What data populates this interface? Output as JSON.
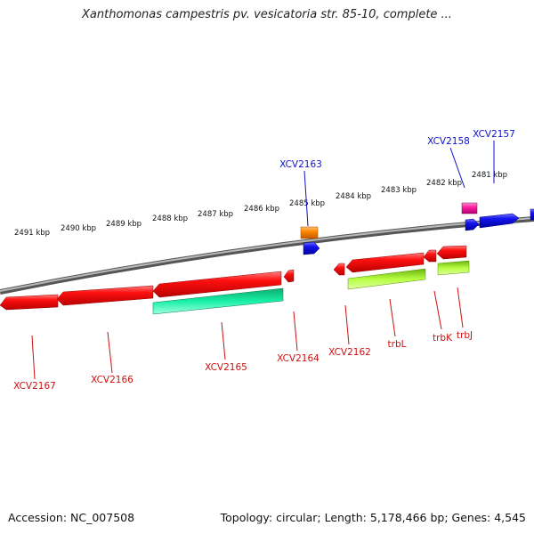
{
  "title": "Xanthomonas campestris pv. vesicatoria str. 85-10, complete ...",
  "footer": {
    "accession": "Accession: NC_007508",
    "summary": "Topology: circular; Length: 5,178,466 bp; Genes: 4,545"
  },
  "colors": {
    "backbone": "#8a8a8a",
    "tick": "#1e8a1e",
    "label_top": "#1010cc",
    "label_bottom": "#cc1010"
  },
  "kbp_labels": [
    "2491 kbp",
    "2490 kbp",
    "2489 kbp",
    "2488 kbp",
    "2487 kbp",
    "2486 kbp",
    "2485 kbp",
    "2484 kbp",
    "2483 kbp",
    "2482 kbp",
    "2481 kbp"
  ],
  "genes_forward": [
    {
      "id": "XCV2163",
      "label": "XCV2163",
      "color": "#2020e0"
    },
    {
      "id": "XCV2158",
      "label": "XCV2158",
      "color": "#2020e0"
    },
    {
      "id": "XCV2157",
      "label": "XCV2157",
      "color": "#2020e0"
    }
  ],
  "genes_reverse": [
    {
      "id": "XCV2167",
      "label": "XCV2167",
      "color": "#ee1010"
    },
    {
      "id": "XCV2166",
      "label": "XCV2166",
      "color": "#ee1010"
    },
    {
      "id": "XCV2165",
      "label": "XCV2165",
      "color": "#ee1010"
    },
    {
      "id": "XCV2164",
      "label": "XCV2164",
      "color": "#ee1010"
    },
    {
      "id": "XCV2162",
      "label": "XCV2162",
      "color": "#ee1010"
    },
    {
      "id": "trbL",
      "label": "trbL",
      "color": "#ee1010"
    },
    {
      "id": "trbK",
      "label": "trbK",
      "color": "#ee1010"
    },
    {
      "id": "trbJ",
      "label": "trbJ",
      "color": "#ee1010"
    }
  ]
}
